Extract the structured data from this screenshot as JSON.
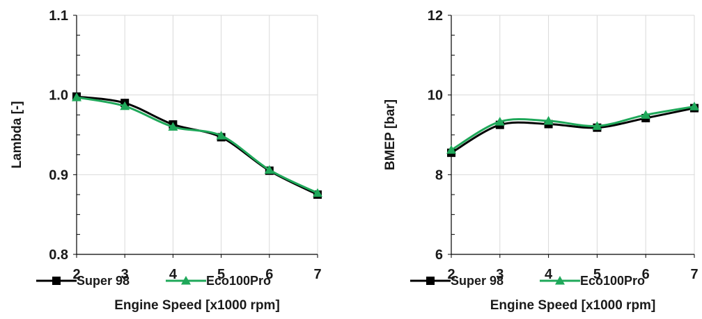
{
  "chart_data": [
    {
      "type": "line",
      "xlabel": "Engine Speed [x1000 rpm]",
      "ylabel": "Lambda [-]",
      "x": [
        2,
        3,
        4,
        5,
        6,
        7
      ],
      "xlim": [
        2,
        7
      ],
      "ylim": [
        0.8,
        1.1
      ],
      "xticks": [
        "2",
        "3",
        "4",
        "5",
        "6",
        "7"
      ],
      "yticks": [
        "0.8",
        "0.9",
        "1.0",
        "1.1"
      ],
      "grid": true,
      "legend_position": "bottom",
      "series": [
        {
          "name": "Super 98",
          "values": [
            0.998,
            0.99,
            0.963,
            0.947,
            0.905,
            0.875
          ],
          "color": "#000000",
          "marker": "square"
        },
        {
          "name": "Eco100Pro",
          "values": [
            0.997,
            0.986,
            0.96,
            0.949,
            0.906,
            0.877
          ],
          "color": "#1fa85a",
          "marker": "triangle"
        }
      ]
    },
    {
      "type": "line",
      "xlabel": "Engine Speed [x1000 rpm]",
      "ylabel": "BMEP [bar]",
      "x": [
        2,
        3,
        4,
        5,
        6,
        7
      ],
      "xlim": [
        2,
        7
      ],
      "ylim": [
        6,
        12
      ],
      "xticks": [
        "2",
        "3",
        "4",
        "5",
        "6",
        "7"
      ],
      "yticks": [
        "6",
        "8",
        "10",
        "12"
      ],
      "grid": true,
      "legend_position": "bottom",
      "series": [
        {
          "name": "Super 98",
          "values": [
            8.55,
            9.25,
            9.27,
            9.18,
            9.42,
            9.67
          ],
          "color": "#000000",
          "marker": "square"
        },
        {
          "name": "Eco100Pro",
          "values": [
            8.62,
            9.33,
            9.35,
            9.22,
            9.5,
            9.71
          ],
          "color": "#1fa85a",
          "marker": "triangle"
        }
      ]
    }
  ]
}
